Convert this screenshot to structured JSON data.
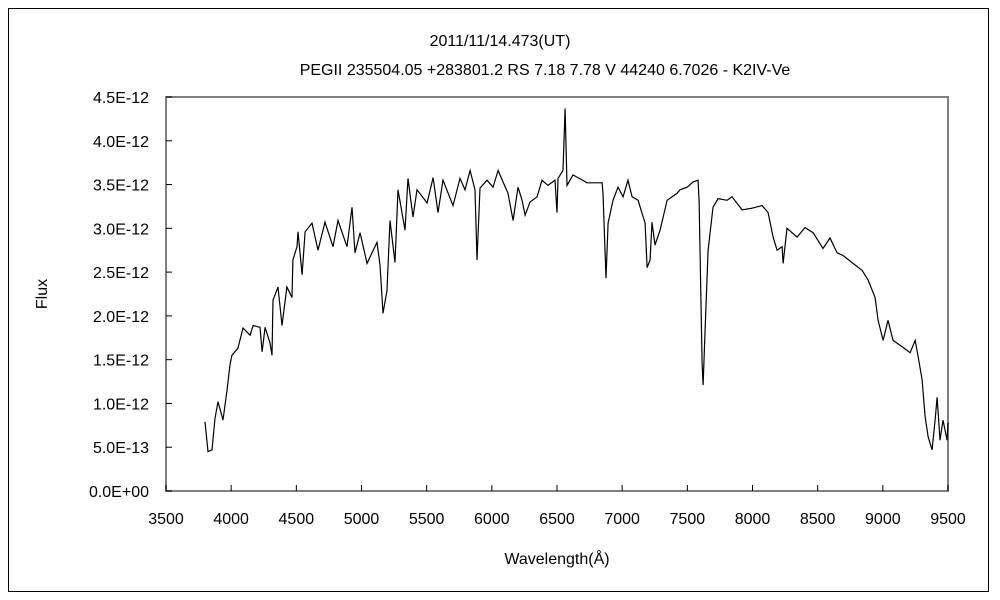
{
  "chart_data": {
    "type": "line",
    "title": "2011/11/14.473(UT)",
    "subtitle": "PEGII 235504.05 +283801.2 RS 7.18 7.78 V 44240 6.7026 - K2IV-Ve",
    "xlabel": "Wavelength(Å)",
    "ylabel": "Flux",
    "xlim": [
      3500,
      9500
    ],
    "ylim": [
      0,
      4.5e-12
    ],
    "grid": false,
    "line_color": "#000000",
    "x_ticks": [
      3500,
      4000,
      4500,
      5000,
      5500,
      6000,
      6500,
      7000,
      7500,
      8000,
      8500,
      9000,
      9500
    ],
    "x_tick_labels": [
      "3500",
      "4000",
      "4500",
      "5000",
      "5500",
      "6000",
      "6500",
      "7000",
      "7500",
      "8000",
      "8500",
      "9000",
      "9500"
    ],
    "y_ticks": [
      0,
      5e-13,
      1e-12,
      1.5e-12,
      2e-12,
      2.5e-12,
      3e-12,
      3.5e-12,
      4e-12,
      4.5e-12
    ],
    "y_tick_labels": [
      "0.0E+00",
      "5.0E-13",
      "1.0E-12",
      "1.5E-12",
      "2.0E-12",
      "2.5E-12",
      "3.0E-12",
      "3.5E-12",
      "4.0E-12",
      "4.5E-12"
    ],
    "series": [
      {
        "x": [
          3799,
          3822,
          3853,
          3876,
          3899,
          3937,
          3968,
          3991,
          4006,
          4052,
          4091,
          4145,
          4168,
          4221,
          4237,
          4260,
          4298,
          4313,
          4321,
          4359,
          4390,
          4428,
          4467,
          4474,
          4505,
          4513,
          4544,
          4567,
          4620,
          4666,
          4720,
          4781,
          4820,
          4889,
          4927,
          4950,
          4989,
          5042,
          5119,
          5142,
          5165,
          5196,
          5219,
          5257,
          5280,
          5334,
          5357,
          5395,
          5426,
          5503,
          5549,
          5587,
          5625,
          5702,
          5756,
          5794,
          5833,
          5871,
          5886,
          5909,
          5963,
          6009,
          6048,
          6086,
          6124,
          6163,
          6201,
          6232,
          6255,
          6293,
          6347,
          6385,
          6431,
          6485,
          6500,
          6508,
          6546,
          6562,
          6577,
          6623,
          6730,
          6846,
          6853,
          6876,
          6892,
          6930,
          6968,
          7007,
          7045,
          7076,
          7122,
          7153,
          7176,
          7191,
          7214,
          7229,
          7252,
          7291,
          7345,
          7383,
          7421,
          7444,
          7498,
          7544,
          7582,
          7590,
          7613,
          7621,
          7636,
          7659,
          7697,
          7736,
          7805,
          7843,
          7920,
          7997,
          8074,
          8120,
          8158,
          8189,
          8227,
          8235,
          8265,
          8342,
          8403,
          8465,
          8541,
          8595,
          8649,
          8695,
          8772,
          8841,
          8887,
          8941,
          8964,
          9002,
          9040,
          9079,
          9155,
          9209,
          9248,
          9271,
          9301,
          9324,
          9347,
          9378,
          9401,
          9416,
          9439,
          9462,
          9493,
          9500
        ],
        "y": [
          7.9e-13,
          4.5e-13,
          4.7e-13,
          8.3e-13,
          1.02e-12,
          8.1e-13,
          1.15e-12,
          1.44e-12,
          1.55e-12,
          1.63e-12,
          1.86e-12,
          1.78e-12,
          1.89e-12,
          1.87e-12,
          1.59e-12,
          1.87e-12,
          1.69e-12,
          1.55e-12,
          2.18e-12,
          2.33e-12,
          1.89e-12,
          2.33e-12,
          2.21e-12,
          2.64e-12,
          2.79e-12,
          2.96e-12,
          2.47e-12,
          2.96e-12,
          3.06e-12,
          2.75e-12,
          3.07e-12,
          2.79e-12,
          3.09e-12,
          2.79e-12,
          3.24e-12,
          2.72e-12,
          2.95e-12,
          2.6e-12,
          2.84e-12,
          2.58e-12,
          2.03e-12,
          2.29e-12,
          3.09e-12,
          2.61e-12,
          3.44e-12,
          2.98e-12,
          3.57e-12,
          3.13e-12,
          3.44e-12,
          3.29e-12,
          3.58e-12,
          3.18e-12,
          3.55e-12,
          3.26e-12,
          3.57e-12,
          3.44e-12,
          3.66e-12,
          3.44e-12,
          2.64e-12,
          3.46e-12,
          3.55e-12,
          3.47e-12,
          3.66e-12,
          3.53e-12,
          3.4e-12,
          3.09e-12,
          3.47e-12,
          3.32e-12,
          3.15e-12,
          3.3e-12,
          3.36e-12,
          3.55e-12,
          3.49e-12,
          3.55e-12,
          3.18e-12,
          3.57e-12,
          3.66e-12,
          4.37e-12,
          3.49e-12,
          3.61e-12,
          3.52e-12,
          3.52e-12,
          3.4e-12,
          2.43e-12,
          3.06e-12,
          3.32e-12,
          3.47e-12,
          3.36e-12,
          3.55e-12,
          3.36e-12,
          3.32e-12,
          3.17e-12,
          3.06e-12,
          2.55e-12,
          2.64e-12,
          3.07e-12,
          2.81e-12,
          2.98e-12,
          3.32e-12,
          3.36e-12,
          3.4e-12,
          3.44e-12,
          3.47e-12,
          3.53e-12,
          3.55e-12,
          3.32e-12,
          1.46e-12,
          1.21e-12,
          1.84e-12,
          2.75e-12,
          3.24e-12,
          3.34e-12,
          3.32e-12,
          3.36e-12,
          3.21e-12,
          3.23e-12,
          3.26e-12,
          3.18e-12,
          2.9e-12,
          2.75e-12,
          2.79e-12,
          2.6e-12,
          3e-12,
          2.9e-12,
          3.01e-12,
          2.95e-12,
          2.77e-12,
          2.89e-12,
          2.72e-12,
          2.69e-12,
          2.6e-12,
          2.52e-12,
          2.41e-12,
          2.21e-12,
          1.95e-12,
          1.72e-12,
          1.95e-12,
          1.72e-12,
          1.64e-12,
          1.58e-12,
          1.72e-12,
          1.53e-12,
          1.27e-12,
          8.5e-13,
          6.2e-13,
          4.7e-13,
          8.1e-13,
          1.07e-12,
          5.8e-13,
          8.1e-13,
          5.8e-13,
          7.8e-13
        ]
      }
    ]
  }
}
